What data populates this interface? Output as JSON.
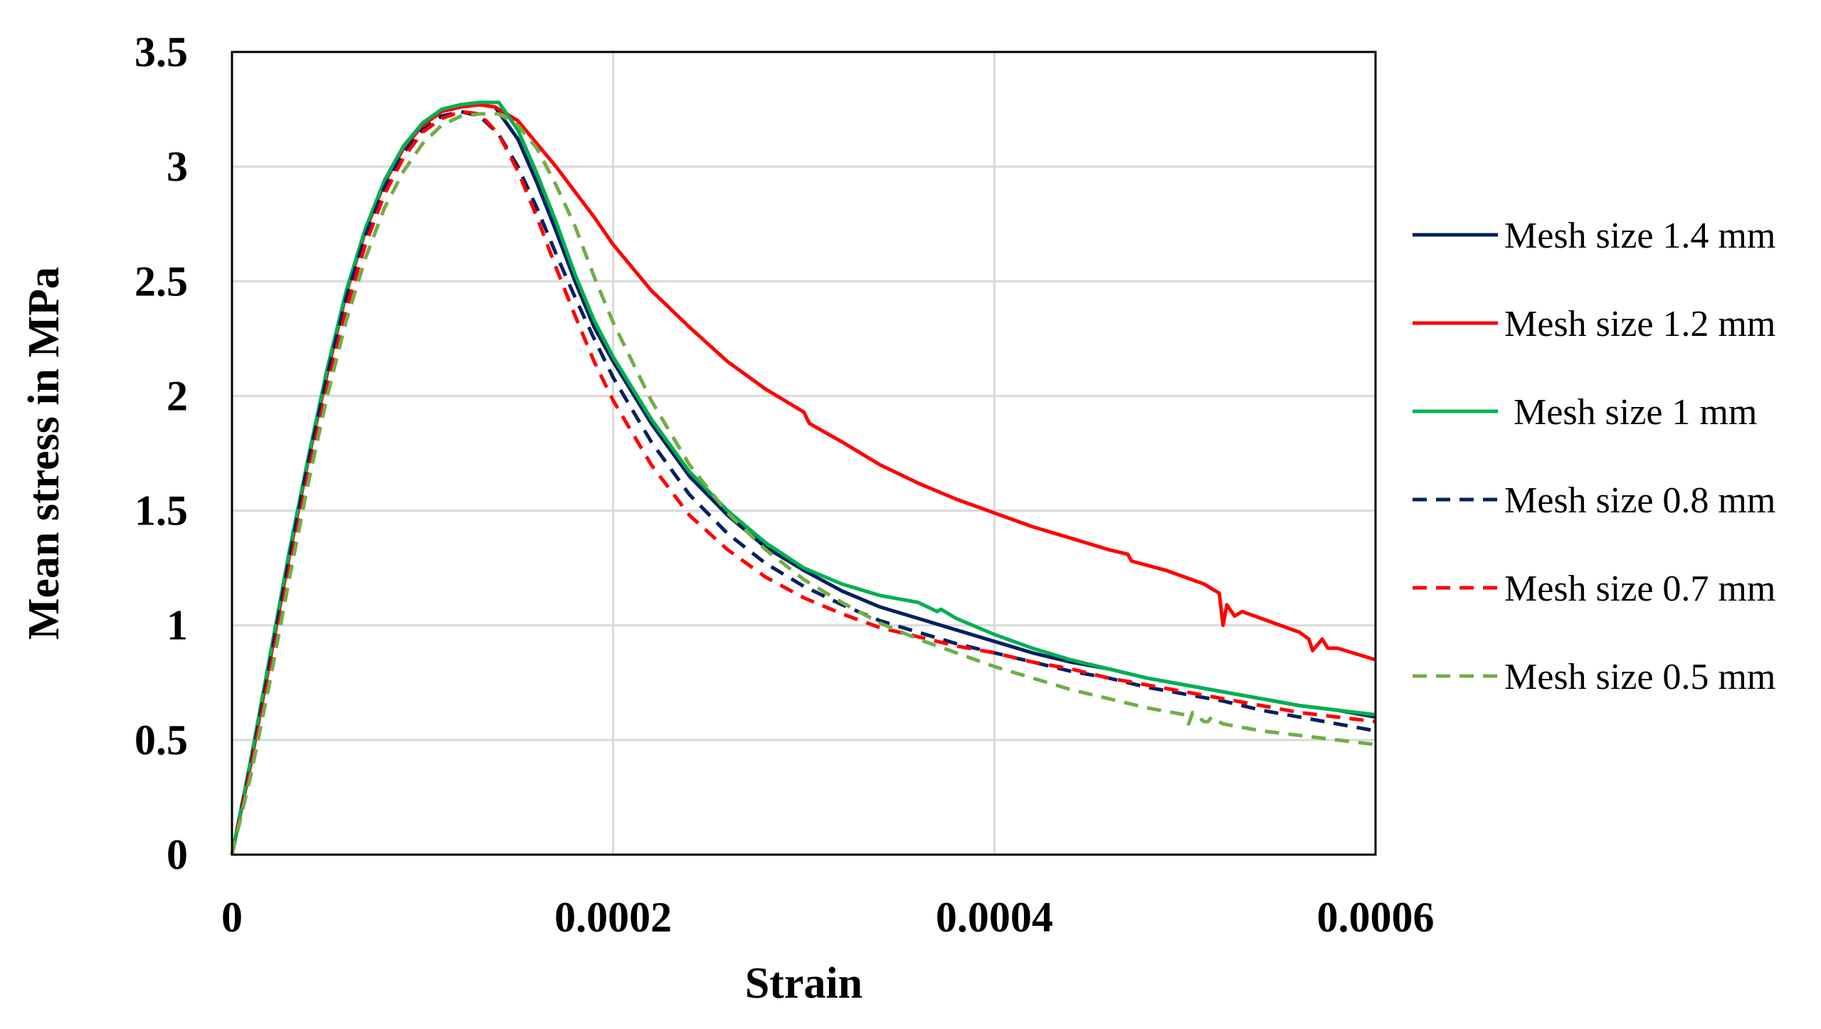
{
  "chart_data": {
    "type": "line",
    "title": "",
    "xlabel": "Strain",
    "ylabel": "Mean stress in MPa",
    "xlim": [
      0,
      0.0006
    ],
    "ylim": [
      0,
      3.5
    ],
    "xticks": [
      0,
      0.0002,
      0.0004,
      0.0006
    ],
    "xtick_labels": [
      "0",
      "0.0002",
      "0.0004",
      "0.0006"
    ],
    "yticks": [
      0,
      0.5,
      1,
      1.5,
      2,
      2.5,
      3,
      3.5
    ],
    "ytick_labels": [
      "0",
      "0.5",
      "1",
      "1.5",
      "2",
      "2.5",
      "3",
      "3.5"
    ],
    "grid": true,
    "legend_position": "right",
    "series": [
      {
        "name": "Mesh size 1.4 mm",
        "color": "#002060",
        "dash": "solid",
        "x": [
          0,
          1e-05,
          2e-05,
          3e-05,
          4e-05,
          5e-05,
          6e-05,
          7e-05,
          8e-05,
          9e-05,
          0.0001,
          0.00011,
          0.00012,
          0.00013,
          0.000138,
          0.00015,
          0.00016,
          0.00017,
          0.00018,
          0.00019,
          0.0002,
          0.00022,
          0.00024,
          0.00026,
          0.00028,
          0.0003,
          0.00032,
          0.00034,
          0.00036,
          0.00038,
          0.0004,
          0.00042,
          0.00044,
          0.00046,
          0.00048,
          0.0005,
          0.00052,
          0.00054,
          0.00056,
          0.00058,
          0.0006
        ],
        "y": [
          0,
          0.4,
          0.85,
          1.3,
          1.72,
          2.1,
          2.45,
          2.72,
          2.93,
          3.08,
          3.18,
          3.24,
          3.26,
          3.27,
          3.26,
          3.12,
          2.93,
          2.72,
          2.5,
          2.3,
          2.15,
          1.88,
          1.65,
          1.48,
          1.34,
          1.24,
          1.15,
          1.08,
          1.03,
          0.98,
          0.93,
          0.88,
          0.84,
          0.81,
          0.77,
          0.74,
          0.71,
          0.68,
          0.65,
          0.63,
          0.6
        ]
      },
      {
        "name": "Mesh size 1.2 mm",
        "color": "#ff0000",
        "dash": "solid",
        "x": [
          0,
          1e-05,
          2e-05,
          3e-05,
          4e-05,
          5e-05,
          6e-05,
          7e-05,
          8e-05,
          9e-05,
          0.0001,
          0.00011,
          0.00012,
          0.00013,
          0.000138,
          0.00015,
          0.00016,
          0.00017,
          0.00018,
          0.00019,
          0.0002,
          0.00022,
          0.00024,
          0.00026,
          0.00028,
          0.0003,
          0.000303,
          0.00032,
          0.00034,
          0.00036,
          0.00038,
          0.0004,
          0.00042,
          0.00044,
          0.00046,
          0.00047,
          0.000472,
          0.00049,
          0.00051,
          0.000518,
          0.00052,
          0.000522,
          0.000526,
          0.00053,
          0.00054,
          0.00056,
          0.000565,
          0.000567,
          0.000572,
          0.000575,
          0.00058,
          0.0006
        ],
        "y": [
          0,
          0.4,
          0.85,
          1.3,
          1.72,
          2.1,
          2.45,
          2.72,
          2.93,
          3.08,
          3.18,
          3.24,
          3.26,
          3.27,
          3.26,
          3.2,
          3.1,
          3.0,
          2.89,
          2.78,
          2.66,
          2.46,
          2.3,
          2.15,
          2.03,
          1.93,
          1.88,
          1.8,
          1.7,
          1.62,
          1.55,
          1.49,
          1.43,
          1.38,
          1.33,
          1.31,
          1.28,
          1.24,
          1.18,
          1.14,
          1.0,
          1.09,
          1.04,
          1.06,
          1.03,
          0.97,
          0.94,
          0.89,
          0.94,
          0.9,
          0.9,
          0.85
        ]
      },
      {
        "name": " Mesh size 1 mm",
        "color": "#00b050",
        "dash": "solid",
        "x": [
          0,
          1e-05,
          2e-05,
          3e-05,
          4e-05,
          5e-05,
          6e-05,
          7e-05,
          8e-05,
          9e-05,
          0.0001,
          0.00011,
          0.00012,
          0.00013,
          0.00014,
          0.00015,
          0.00016,
          0.00017,
          0.00018,
          0.00019,
          0.0002,
          0.00022,
          0.00024,
          0.00026,
          0.00028,
          0.0003,
          0.00032,
          0.00034,
          0.00036,
          0.00037,
          0.000372,
          0.00038,
          0.0004,
          0.00042,
          0.00044,
          0.00046,
          0.00048,
          0.0005,
          0.00052,
          0.00054,
          0.00056,
          0.00058,
          0.0006
        ],
        "y": [
          0,
          0.42,
          0.87,
          1.32,
          1.73,
          2.12,
          2.46,
          2.73,
          2.94,
          3.09,
          3.19,
          3.25,
          3.27,
          3.28,
          3.28,
          3.16,
          2.97,
          2.76,
          2.53,
          2.33,
          2.17,
          1.9,
          1.67,
          1.5,
          1.36,
          1.25,
          1.18,
          1.13,
          1.1,
          1.06,
          1.07,
          1.03,
          0.96,
          0.9,
          0.85,
          0.81,
          0.77,
          0.74,
          0.71,
          0.68,
          0.65,
          0.63,
          0.61
        ]
      },
      {
        "name": "Mesh size 0.8 mm",
        "color": "#002060",
        "dash": "dashed",
        "x": [
          0,
          1e-05,
          2e-05,
          3e-05,
          4e-05,
          5e-05,
          6e-05,
          7e-05,
          8e-05,
          9e-05,
          0.0001,
          0.00011,
          0.00012,
          0.00013,
          0.00014,
          0.00015,
          0.00016,
          0.00017,
          0.00018,
          0.00019,
          0.0002,
          0.00022,
          0.00024,
          0.00026,
          0.00028,
          0.0003,
          0.00032,
          0.00034,
          0.00036,
          0.00038,
          0.0004,
          0.00042,
          0.00044,
          0.00046,
          0.00048,
          0.0005,
          0.00052,
          0.00054,
          0.00056,
          0.00058,
          0.0006
        ],
        "y": [
          0,
          0.4,
          0.84,
          1.29,
          1.71,
          2.09,
          2.43,
          2.7,
          2.91,
          3.06,
          3.16,
          3.22,
          3.24,
          3.22,
          3.14,
          3.0,
          2.82,
          2.62,
          2.43,
          2.25,
          2.08,
          1.8,
          1.57,
          1.4,
          1.27,
          1.17,
          1.09,
          1.02,
          0.97,
          0.92,
          0.88,
          0.84,
          0.8,
          0.77,
          0.73,
          0.7,
          0.67,
          0.63,
          0.6,
          0.57,
          0.54
        ]
      },
      {
        "name": "Mesh size 0.7 mm",
        "color": "#ff0000",
        "dash": "dashed",
        "x": [
          0,
          1e-05,
          2e-05,
          3e-05,
          4e-05,
          5e-05,
          6e-05,
          7e-05,
          8e-05,
          9e-05,
          0.0001,
          0.00011,
          0.00012,
          0.00013,
          0.00014,
          0.00015,
          0.00016,
          0.00017,
          0.00018,
          0.00019,
          0.0002,
          0.00022,
          0.00024,
          0.00026,
          0.00028,
          0.0003,
          0.00032,
          0.00034,
          0.00036,
          0.00038,
          0.0004,
          0.00042,
          0.00044,
          0.00046,
          0.00048,
          0.0005,
          0.00052,
          0.00054,
          0.00056,
          0.00058,
          0.0006
        ],
        "y": [
          0,
          0.38,
          0.8,
          1.24,
          1.66,
          2.04,
          2.38,
          2.66,
          2.88,
          3.04,
          3.15,
          3.21,
          3.24,
          3.23,
          3.14,
          2.98,
          2.78,
          2.56,
          2.35,
          2.15,
          1.98,
          1.7,
          1.48,
          1.33,
          1.21,
          1.12,
          1.05,
          0.99,
          0.95,
          0.91,
          0.88,
          0.84,
          0.81,
          0.77,
          0.74,
          0.71,
          0.68,
          0.65,
          0.62,
          0.6,
          0.58
        ]
      },
      {
        "name": "Mesh size 0.5 mm",
        "color": "#70ad47",
        "dash": "dashed",
        "x": [
          0,
          1e-05,
          2e-05,
          3e-05,
          4e-05,
          5e-05,
          6e-05,
          7e-05,
          8e-05,
          9e-05,
          0.0001,
          0.00011,
          0.00012,
          0.00013,
          0.00014,
          0.00015,
          0.00016,
          0.00017,
          0.00018,
          0.00019,
          0.0002,
          0.00022,
          0.00024,
          0.00026,
          0.00028,
          0.0003,
          0.00032,
          0.00034,
          0.00036,
          0.00038,
          0.0004,
          0.00042,
          0.00044,
          0.00046,
          0.00048,
          0.0005,
          0.000502,
          0.000504,
          0.00051,
          0.000512,
          0.000514,
          0.00052,
          0.00054,
          0.00056,
          0.00058,
          0.0006
        ],
        "y": [
          0,
          0.35,
          0.76,
          1.2,
          1.62,
          2.0,
          2.33,
          2.6,
          2.82,
          2.98,
          3.1,
          3.18,
          3.22,
          3.23,
          3.23,
          3.18,
          3.08,
          2.92,
          2.74,
          2.52,
          2.32,
          1.98,
          1.7,
          1.49,
          1.33,
          1.2,
          1.1,
          1.01,
          0.94,
          0.88,
          0.82,
          0.77,
          0.72,
          0.68,
          0.64,
          0.61,
          0.57,
          0.62,
          0.58,
          0.58,
          0.6,
          0.57,
          0.54,
          0.52,
          0.5,
          0.48
        ]
      }
    ]
  }
}
